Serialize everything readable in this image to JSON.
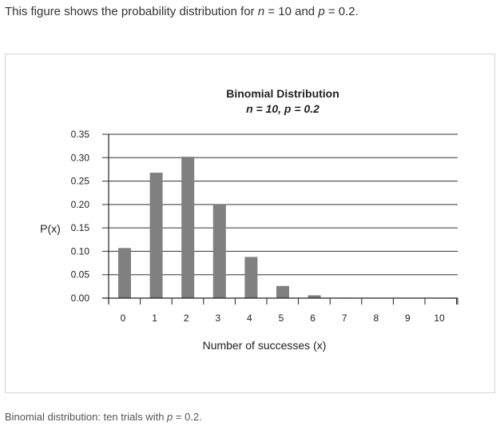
{
  "intro": {
    "before": "This figure shows the probability distribution for ",
    "n_var": "n",
    "n_eq": " = 10 and ",
    "p_var": "p",
    "p_eq": " = 0.2."
  },
  "caption": {
    "before": "Binomial distribution: ten trials with ",
    "p_var": "p",
    "p_eq": " = 0.2."
  },
  "chart_data": {
    "type": "bar",
    "title": "Binomial Distribution",
    "subtitle": "n = 10, p = 0.2",
    "xlabel": "Number of successes (x)",
    "ylabel": "P(x)",
    "categories": [
      "0",
      "1",
      "2",
      "3",
      "4",
      "5",
      "6",
      "7",
      "8",
      "9",
      "10"
    ],
    "values": [
      0.107,
      0.268,
      0.302,
      0.201,
      0.088,
      0.026,
      0.006,
      0.001,
      0.0001,
      0.0,
      0.0
    ],
    "yticks": [
      "0.00",
      "0.05",
      "0.10",
      "0.15",
      "0.20",
      "0.25",
      "0.30",
      "0.35"
    ],
    "ylim": [
      0,
      0.35
    ],
    "grid": true,
    "bar_color": "#808080",
    "grid_color": "#333333"
  }
}
